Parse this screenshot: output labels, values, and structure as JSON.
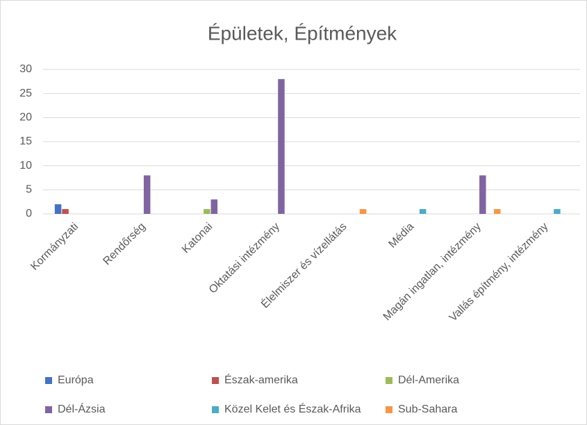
{
  "chart_data": {
    "type": "bar",
    "title": "Épületek, Építmények",
    "categories": [
      "Kormányzati",
      "Rendőrség",
      "Katonai",
      "Oktatási intézmény",
      "Élelmiszer és vízellátás",
      "Média",
      "Magán ingatlan, intézmény",
      "Vallás építmény, intézmény"
    ],
    "series": [
      {
        "name": "Európa",
        "color": "#4472c4",
        "values": [
          2,
          0,
          0,
          0,
          0,
          0,
          0,
          0
        ]
      },
      {
        "name": "Észak-amerika",
        "color": "#c0504d",
        "values": [
          1,
          0,
          0,
          0,
          0,
          0,
          0,
          0
        ]
      },
      {
        "name": "Dél-Amerika",
        "color": "#9bbb59",
        "values": [
          0,
          0,
          1,
          0,
          0,
          0,
          0,
          0
        ]
      },
      {
        "name": "Dél-Ázsia",
        "color": "#8064a2",
        "values": [
          0,
          8,
          3,
          28,
          0,
          0,
          8,
          0
        ]
      },
      {
        "name": "Közel Kelet és Észak-Afrika",
        "color": "#4bacc6",
        "values": [
          0,
          0,
          0,
          0,
          0,
          1,
          0,
          1
        ]
      },
      {
        "name": "Sub-Sahara",
        "color": "#f79646",
        "values": [
          0,
          0,
          0,
          0,
          1,
          0,
          1,
          0
        ]
      }
    ],
    "ylim": [
      0,
      30
    ],
    "yticks": [
      0,
      5,
      10,
      15,
      20,
      25,
      30
    ],
    "grid": true,
    "legend": "bottom"
  }
}
